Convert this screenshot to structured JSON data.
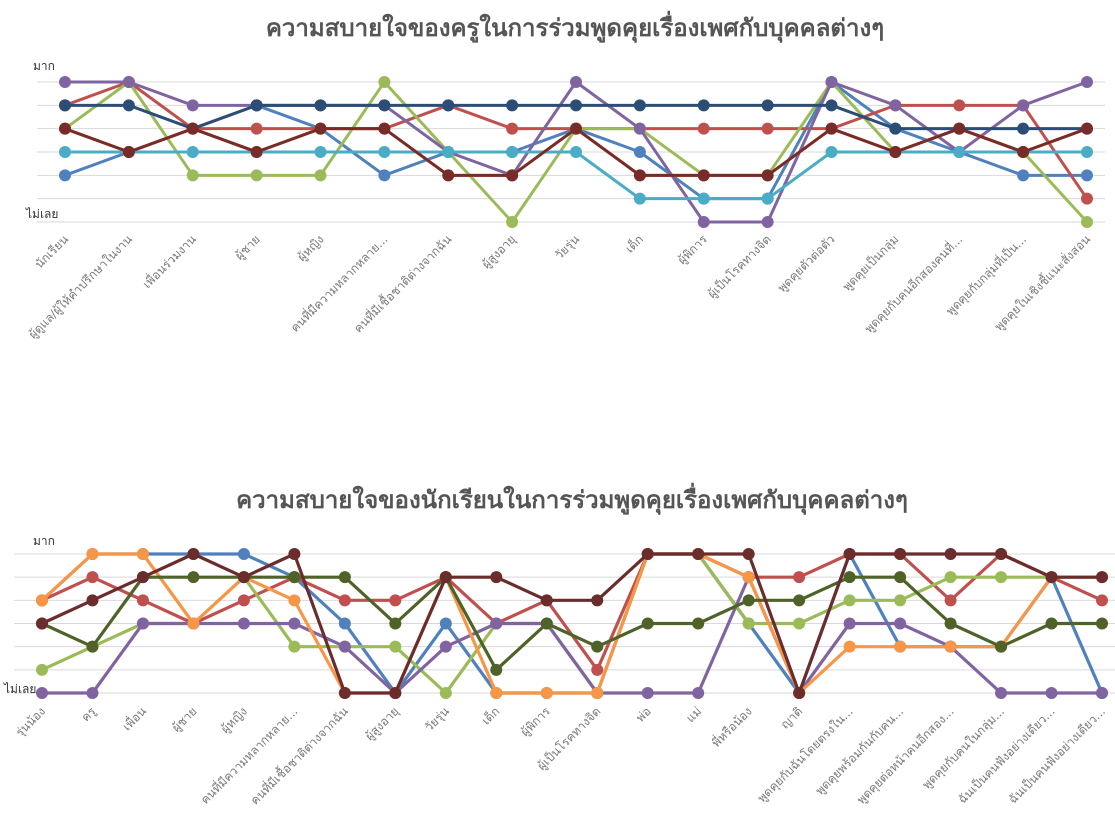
{
  "chart_data": [
    {
      "type": "line",
      "title": "ความสบายใจของครูในการร่วมพูดคุยเรื่องเพศกับบุคคลต่างๆ",
      "ymax_label": "มาก",
      "ymin_label": "ไม่เลย",
      "ylim": [
        1,
        7
      ],
      "grid": true,
      "legend": "none",
      "categories": [
        "นักเรียน",
        "ผู้ดูแล/ผู้ให้คำปรึกษาในงาน",
        "เพื่อนร่วมงาน",
        "ผู้ชาย",
        "ผู้หญิง",
        "คนที่มีความหลากหลาย...",
        "คนที่มีเชื้อชาติต่างจากฉัน",
        "ผู้สูงอายุ",
        "วัยรุ่น",
        "เด็ก",
        "ผู้พิการ",
        "ผู้เป็นโรคทางจิต",
        "พูดคุยตัวต่อตัว",
        "พูดคุยเป็นกลุ่ม",
        "พูดคุยกับคนอีกสองคนที่...",
        "พูดคุยกับกลุ่มที่เป็น...",
        "พูดคุยในเชิงชี้แนะสั่งสอน"
      ],
      "series": [
        {
          "color": "#4f81bd",
          "values": [
            3,
            4,
            5,
            6,
            5,
            3,
            4,
            4,
            5,
            4,
            2,
            2,
            7,
            5,
            4,
            3,
            3
          ]
        },
        {
          "color": "#c0504d",
          "values": [
            6,
            7,
            5,
            5,
            5,
            5,
            6,
            5,
            5,
            5,
            5,
            5,
            5,
            6,
            6,
            6,
            2
          ]
        },
        {
          "color": "#9bbb59",
          "values": [
            5,
            7,
            3,
            3,
            3,
            7,
            4,
            1,
            5,
            5,
            3,
            3,
            7,
            4,
            5,
            4,
            1
          ]
        },
        {
          "color": "#8064a2",
          "values": [
            7,
            7,
            6,
            6,
            6,
            6,
            4,
            3,
            7,
            5,
            1,
            1,
            7,
            6,
            4,
            6,
            7
          ]
        },
        {
          "color": "#4bacc6",
          "values": [
            4,
            4,
            4,
            4,
            4,
            4,
            4,
            4,
            4,
            2,
            2,
            2,
            4,
            4,
            4,
            4,
            4
          ]
        },
        {
          "color": "#f79646",
          "values": [
            5,
            4,
            5,
            4,
            5,
            5,
            3,
            3,
            5,
            3,
            3,
            3,
            5,
            4,
            5,
            4,
            5
          ]
        },
        {
          "color": "#2c4d75",
          "values": [
            6,
            6,
            5,
            6,
            6,
            6,
            6,
            6,
            6,
            6,
            6,
            6,
            6,
            5,
            5,
            5,
            5
          ]
        },
        {
          "color": "#772c2a",
          "values": [
            5,
            4,
            5,
            4,
            5,
            5,
            3,
            3,
            5,
            3,
            3,
            3,
            5,
            4,
            5,
            4,
            5
          ]
        }
      ]
    },
    {
      "type": "line",
      "title": "ความสบายใจของนักเรียนในการร่วมพูดคุยเรื่องเพศกับบุคคลต่างๆ",
      "ymax_label": "มาก",
      "ymin_label": "ไม่เลย",
      "ylim": [
        1,
        7
      ],
      "grid": true,
      "legend": "none",
      "categories": [
        "รุ่นน้อง",
        "ครู",
        "เพื่อน",
        "ผู้ชาย",
        "ผู้หญิง",
        "คนที่มีความหลากหลาย...",
        "คนที่มีเชื้อชาติต่างจากฉัน",
        "ผู้สูงอายุ",
        "วัยรุ่น",
        "เด็ก",
        "ผู้พิการ",
        "ผู้เป็นโรคทางจิต",
        "พ่อ",
        "แม่",
        "พี่หรือน้อง",
        "ญาติ",
        "พูดคุยกับฉันโดยตรงใน...",
        "พูดคุยพร้อมกันกับคน...",
        "พูดคุยต่อหน้าคนอีกสอง...",
        "พูดคุยกับคนในกลุ่ม...",
        "ฉันเป็นคนฟังอย่างเดียว...",
        "ฉันเป็นคนฟังอย่างเดียว..."
      ],
      "series": [
        {
          "color": "#4f81bd",
          "values": [
            5,
            7,
            7,
            7,
            7,
            6,
            4,
            1,
            4,
            1,
            1,
            1,
            7,
            7,
            4,
            1,
            7,
            3,
            3,
            3,
            6,
            1
          ]
        },
        {
          "color": "#c0504d",
          "values": [
            5,
            6,
            5,
            4,
            5,
            6,
            5,
            5,
            6,
            4,
            5,
            2,
            7,
            7,
            6,
            6,
            7,
            7,
            5,
            7,
            6,
            5
          ]
        },
        {
          "color": "#9bbb59",
          "values": [
            2,
            3,
            4,
            4,
            6,
            3,
            3,
            3,
            1,
            4,
            4,
            1,
            7,
            7,
            4,
            4,
            5,
            5,
            6,
            6,
            6,
            6
          ]
        },
        {
          "color": "#8064a2",
          "values": [
            1,
            1,
            4,
            4,
            4,
            4,
            3,
            1,
            3,
            4,
            4,
            1,
            1,
            1,
            6,
            1,
            4,
            4,
            3,
            1,
            1,
            1
          ]
        },
        {
          "color": "#f79646",
          "values": [
            5,
            7,
            7,
            4,
            6,
            5,
            1,
            1,
            6,
            1,
            1,
            1,
            7,
            7,
            6,
            1,
            3,
            3,
            3,
            3,
            6,
            6
          ]
        },
        {
          "color": "#4f6228",
          "values": [
            4,
            3,
            6,
            6,
            6,
            6,
            6,
            4,
            6,
            2,
            4,
            3,
            4,
            4,
            5,
            5,
            6,
            6,
            4,
            3,
            4,
            4
          ]
        },
        {
          "color": "#6b2c2c",
          "values": [
            4,
            5,
            6,
            7,
            6,
            7,
            1,
            1,
            6,
            6,
            5,
            5,
            7,
            7,
            7,
            1,
            7,
            7,
            7,
            7,
            6,
            6
          ]
        }
      ]
    }
  ]
}
